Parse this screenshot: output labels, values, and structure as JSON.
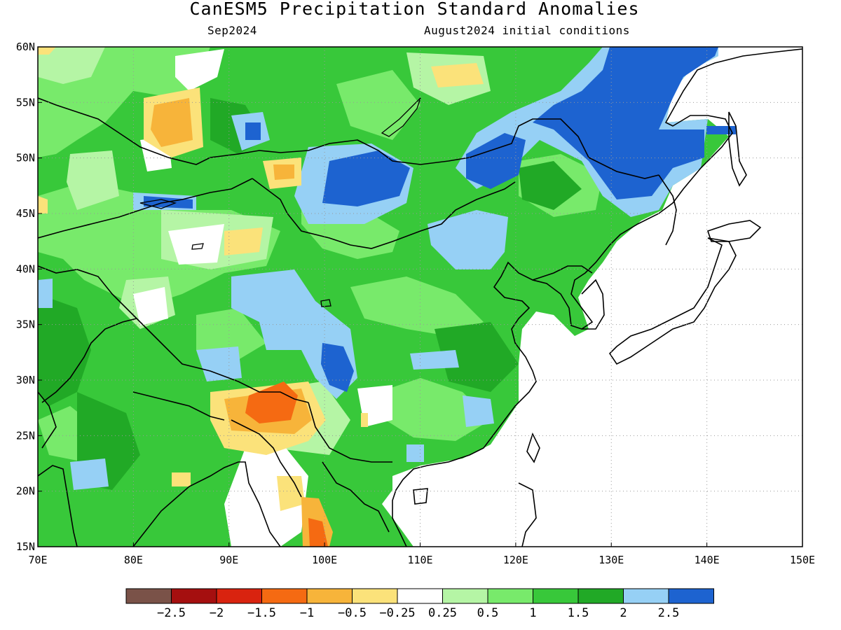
{
  "title": "CanESM5 Precipitation Standard Anomalies",
  "subtitle_left": "Sep2024",
  "subtitle_right": "August2024 initial conditions",
  "map": {
    "lon_range": [
      70,
      150
    ],
    "lat_range": [
      15,
      60
    ],
    "x_ticks": [
      "70E",
      "80E",
      "90E",
      "100E",
      "110E",
      "120E",
      "130E",
      "140E",
      "150E"
    ],
    "y_ticks": [
      "60N",
      "55N",
      "50N",
      "45N",
      "40N",
      "35N",
      "30N",
      "25N",
      "20N",
      "15N"
    ],
    "grid": "dotted"
  },
  "colors": {
    "very_dry": "#7a5248",
    "dry_2": "#a50f0f",
    "dry_1_5": "#d9230f",
    "dry_1": "#f56a12",
    "dry_0_5": "#f7b43a",
    "dry_0_25": "#fbe27a",
    "neutral": "#ffffff",
    "wet_0_25": "#b5f5a5",
    "wet_0_5": "#78ea6b",
    "wet_1": "#38c83a",
    "wet_1_5": "#21a926",
    "wet_2": "#96d0f5",
    "wet_2_5": "#1d63d0"
  },
  "legend": {
    "labels": [
      "−2.5",
      "−2",
      "−1.5",
      "−1",
      "−0.5",
      "−0.25",
      "0.25",
      "0.5",
      "1",
      "1.5",
      "2",
      "2.5"
    ],
    "swatch_colors": [
      "#7a5248",
      "#a50f0f",
      "#d9230f",
      "#f56a12",
      "#f7b43a",
      "#fbe27a",
      "#ffffff",
      "#b5f5a5",
      "#78ea6b",
      "#38c83a",
      "#21a926",
      "#96d0f5",
      "#1d63d0"
    ]
  }
}
